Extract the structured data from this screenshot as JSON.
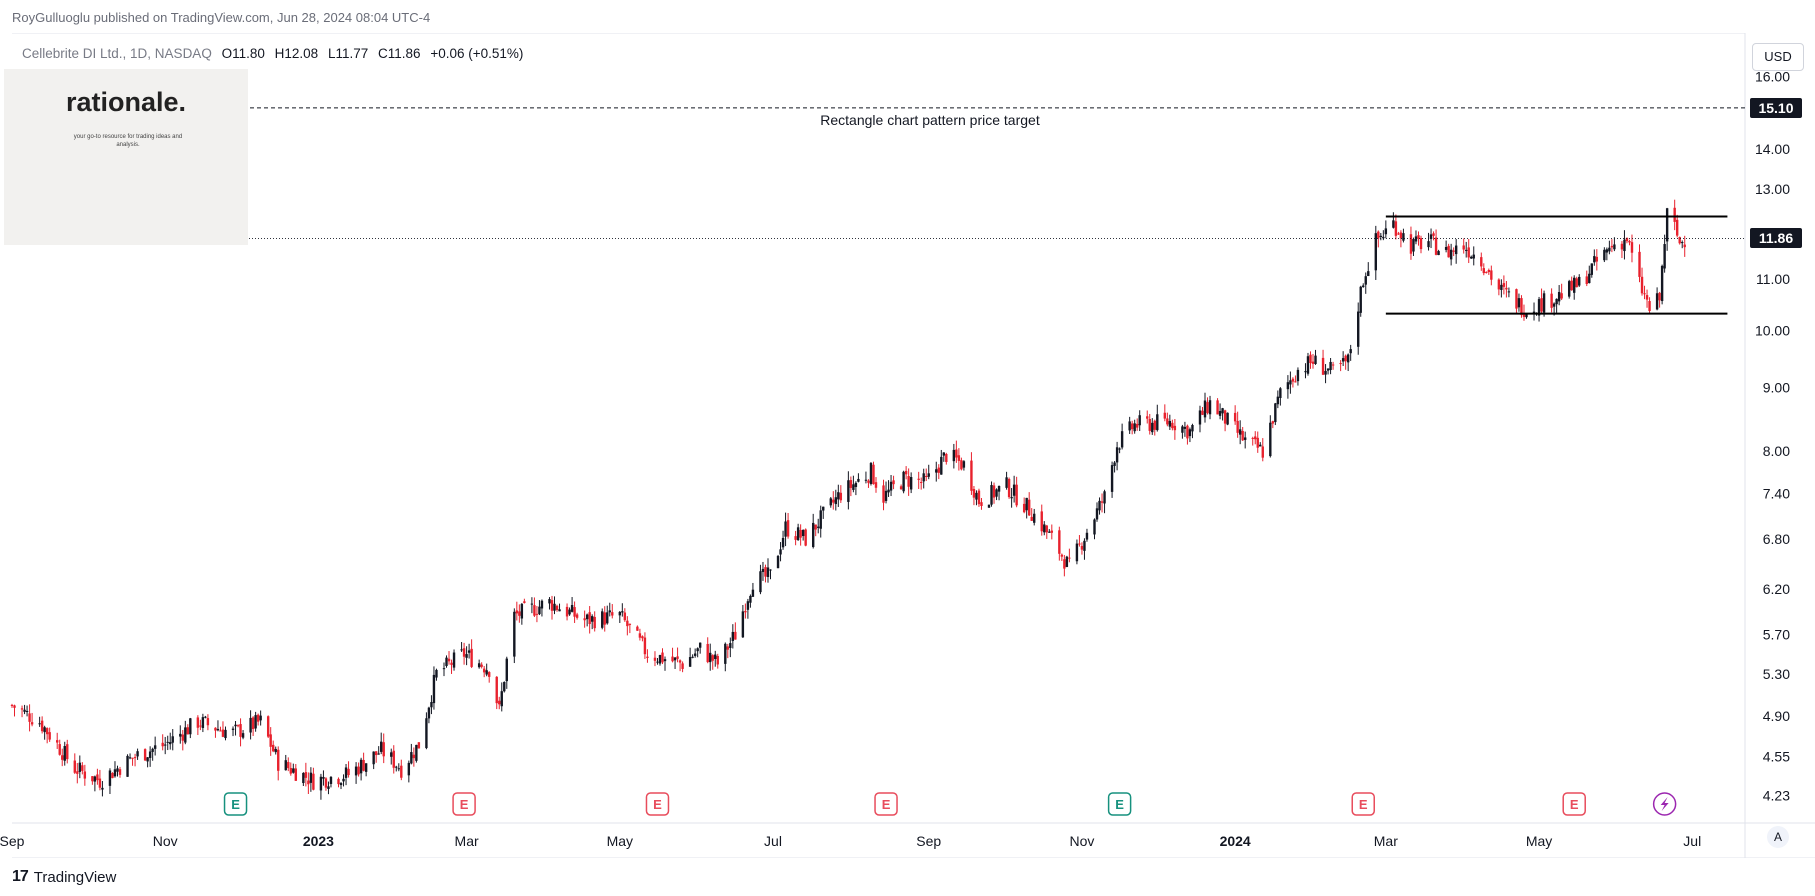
{
  "header": {
    "publisher_line": "RoyGulluoglu published on TradingView.com, Jun 28, 2024 08:04 UTC-4"
  },
  "legend": {
    "symbol": "Cellebrite DI Ltd., 1D, NASDAQ",
    "open_label": "O",
    "open": "11.80",
    "high_label": "H",
    "high": "12.08",
    "low_label": "L",
    "low": "11.77",
    "close_label": "C",
    "close": "11.86",
    "change": "+0.06 (+0.51%)"
  },
  "logo": {
    "name": "rationale.",
    "tagline": "your go-to resource for trading ideas and analysis."
  },
  "scale": {
    "currency": "USD",
    "auto_label": "A"
  },
  "footer": {
    "brand_mark": "17",
    "brand": "TradingView"
  },
  "colors": {
    "up": "#131722",
    "down": "#e8212d",
    "event_earnings": "#e84c5c",
    "event_dividend": "#16917e",
    "event_flash": "#9c27b0"
  },
  "chart_data": {
    "type": "candlestick",
    "title": "Cellebrite DI Ltd., 1D, NASDAQ",
    "yscale": "log",
    "ylim": [
      4.15,
      16.9
    ],
    "y_ticks": [
      "16.00",
      "15.10",
      "14.00",
      "13.00",
      "11.86",
      "11.00",
      "10.00",
      "9.00",
      "8.00",
      "7.40",
      "6.80",
      "6.20",
      "5.70",
      "5.30",
      "4.90",
      "4.55",
      "4.23"
    ],
    "x_ticks": [
      {
        "label": "Sep",
        "date": "2022-09-01",
        "bold": false
      },
      {
        "label": "Nov",
        "date": "2022-11-01",
        "bold": false
      },
      {
        "label": "2023",
        "date": "2023-01-01",
        "bold": true
      },
      {
        "label": "Mar",
        "date": "2023-03-01",
        "bold": false
      },
      {
        "label": "May",
        "date": "2023-05-01",
        "bold": false
      },
      {
        "label": "Jul",
        "date": "2023-07-01",
        "bold": false
      },
      {
        "label": "Sep",
        "date": "2023-09-01",
        "bold": false
      },
      {
        "label": "Nov",
        "date": "2023-11-01",
        "bold": false
      },
      {
        "label": "2024",
        "date": "2024-01-01",
        "bold": true
      },
      {
        "label": "Mar",
        "date": "2024-03-01",
        "bold": false
      },
      {
        "label": "May",
        "date": "2024-05-01",
        "bold": false
      },
      {
        "label": "Jul",
        "date": "2024-07-01",
        "bold": false
      }
    ],
    "x_range": [
      "2022-09-01",
      "2024-07-22"
    ],
    "close_path": [
      [
        "2022-09-01",
        5.0
      ],
      [
        "2022-09-12",
        4.85
      ],
      [
        "2022-09-26",
        4.45
      ],
      [
        "2022-10-06",
        4.35
      ],
      [
        "2022-10-20",
        4.55
      ],
      [
        "2022-11-01",
        4.65
      ],
      [
        "2022-11-14",
        4.85
      ],
      [
        "2022-11-28",
        4.75
      ],
      [
        "2022-12-09",
        4.85
      ],
      [
        "2022-12-16",
        4.5
      ],
      [
        "2022-12-30",
        4.35
      ],
      [
        "2023-01-13",
        4.4
      ],
      [
        "2023-01-26",
        4.6
      ],
      [
        "2023-02-03",
        4.45
      ],
      [
        "2023-02-10",
        4.65
      ],
      [
        "2023-02-17",
        5.3
      ],
      [
        "2023-02-28",
        5.5
      ],
      [
        "2023-03-10",
        5.35
      ],
      [
        "2023-03-14",
        4.95
      ],
      [
        "2023-03-20",
        5.9
      ],
      [
        "2023-04-03",
        6.05
      ],
      [
        "2023-04-17",
        5.85
      ],
      [
        "2023-05-01",
        5.9
      ],
      [
        "2023-05-12",
        5.5
      ],
      [
        "2023-05-26",
        5.4
      ],
      [
        "2023-06-02",
        5.55
      ],
      [
        "2023-06-09",
        5.4
      ],
      [
        "2023-06-16",
        5.7
      ],
      [
        "2023-06-23",
        6.3
      ],
      [
        "2023-06-30",
        6.35
      ],
      [
        "2023-07-06",
        6.95
      ],
      [
        "2023-07-14",
        6.8
      ],
      [
        "2023-07-28",
        7.4
      ],
      [
        "2023-08-09",
        7.7
      ],
      [
        "2023-08-14",
        7.35
      ],
      [
        "2023-08-22",
        7.6
      ],
      [
        "2023-08-31",
        7.55
      ],
      [
        "2023-09-08",
        7.95
      ],
      [
        "2023-09-15",
        7.8
      ],
      [
        "2023-09-21",
        7.3
      ],
      [
        "2023-10-02",
        7.5
      ],
      [
        "2023-10-12",
        7.15
      ],
      [
        "2023-10-20",
        6.8
      ],
      [
        "2023-10-27",
        6.45
      ],
      [
        "2023-11-03",
        6.9
      ],
      [
        "2023-11-10",
        7.35
      ],
      [
        "2023-11-15",
        8.1
      ],
      [
        "2023-11-22",
        8.4
      ],
      [
        "2023-12-07",
        8.45
      ],
      [
        "2023-12-14",
        8.3
      ],
      [
        "2023-12-22",
        8.75
      ],
      [
        "2024-01-05",
        8.15
      ],
      [
        "2024-01-12",
        8.0
      ],
      [
        "2024-01-19",
        8.9
      ],
      [
        "2024-01-26",
        9.3
      ],
      [
        "2024-02-01",
        9.45
      ],
      [
        "2024-02-09",
        9.25
      ],
      [
        "2024-02-15",
        9.45
      ],
      [
        "2024-02-21",
        11.0
      ],
      [
        "2024-02-26",
        11.8
      ],
      [
        "2024-03-04",
        12.2
      ],
      [
        "2024-03-11",
        11.7
      ],
      [
        "2024-03-18",
        11.8
      ],
      [
        "2024-03-25",
        11.55
      ],
      [
        "2024-04-01",
        11.7
      ],
      [
        "2024-04-08",
        11.4
      ],
      [
        "2024-04-15",
        10.8
      ],
      [
        "2024-04-26",
        10.4
      ],
      [
        "2024-05-03",
        10.55
      ],
      [
        "2024-05-10",
        10.7
      ],
      [
        "2024-05-17",
        10.9
      ],
      [
        "2024-05-24",
        11.35
      ],
      [
        "2024-05-30",
        11.7
      ],
      [
        "2024-06-05",
        11.85
      ],
      [
        "2024-06-10",
        10.9
      ],
      [
        "2024-06-14",
        10.4
      ],
      [
        "2024-06-18",
        10.6
      ],
      [
        "2024-06-20",
        11.8
      ],
      [
        "2024-06-21",
        12.4
      ],
      [
        "2024-06-24",
        12.1
      ],
      [
        "2024-06-26",
        11.75
      ],
      [
        "2024-06-28",
        11.86
      ]
    ],
    "last_price": 11.86,
    "rectangle_pattern": {
      "start": "2024-03-01",
      "end": "2024-07-15",
      "top": 12.35,
      "bottom": 10.32
    },
    "target_line": {
      "value": 15.1,
      "label": "Rectangle chart pattern price target"
    },
    "events": [
      {
        "type": "dividend",
        "label": "E",
        "date": "2022-11-29"
      },
      {
        "type": "earnings",
        "label": "E",
        "date": "2023-02-28"
      },
      {
        "type": "earnings",
        "label": "E",
        "date": "2023-05-16"
      },
      {
        "type": "earnings",
        "label": "E",
        "date": "2023-08-15"
      },
      {
        "type": "dividend",
        "label": "E",
        "date": "2023-11-16"
      },
      {
        "type": "earnings",
        "label": "E",
        "date": "2024-02-21"
      },
      {
        "type": "earnings",
        "label": "E",
        "date": "2024-05-15"
      },
      {
        "type": "flash",
        "label": "",
        "date": "2024-06-20"
      }
    ]
  }
}
